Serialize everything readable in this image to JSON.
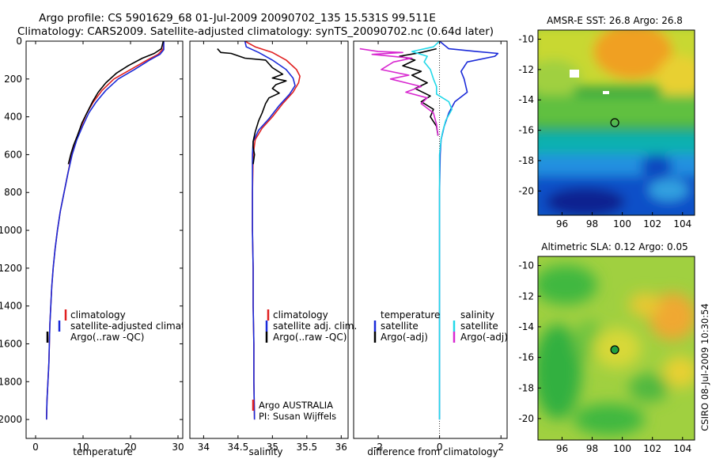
{
  "header": {
    "line1": "Argo profile: CS 5901629_68 01-Jul-2009 20090702_135 15.531S 99.511E",
    "line2": "Climatology: CARS2009. Satellite-adjusted climatology: synTS_20090702.nc (0.64d later)"
  },
  "side_label": "CSIRO 08-Jul-2009 10:30:54",
  "colors": {
    "climatology": "#e02020",
    "satellite": "#1a2ad8",
    "argo": "#000000",
    "sat_salinity": "#22d8e8",
    "argo_salinity": "#d828d0"
  },
  "chart_data": [
    {
      "type": "line",
      "id": "temperature",
      "xlabel": "temperature",
      "ylabel": "",
      "xlim": [
        -2,
        31
      ],
      "ylim": [
        2100,
        0
      ],
      "xticks": [
        0,
        10,
        20,
        30
      ],
      "yticks": [
        0,
        200,
        400,
        600,
        800,
        1000,
        1200,
        1400,
        1600,
        1800,
        2000
      ],
      "legend": [
        "climatology",
        "satellite-adjusted climatology",
        "Argo(..raw -QC)"
      ],
      "series": [
        {
          "name": "climatology",
          "color": "#e02020",
          "width": 1.6,
          "points": [
            [
              27.0,
              0
            ],
            [
              26.9,
              40
            ],
            [
              25.8,
              70
            ],
            [
              23.5,
              100
            ],
            [
              20.0,
              150
            ],
            [
              16.5,
              200
            ],
            [
              14.0,
              260
            ],
            [
              12.2,
              320
            ],
            [
              10.8,
              380
            ],
            [
              9.6,
              450
            ],
            [
              8.5,
              520
            ],
            [
              7.6,
              600
            ],
            [
              6.8,
              700
            ],
            [
              6.0,
              800
            ],
            [
              5.2,
              900
            ],
            [
              4.6,
              1000
            ],
            [
              4.1,
              1100
            ],
            [
              3.7,
              1200
            ],
            [
              3.4,
              1300
            ],
            [
              3.2,
              1400
            ],
            [
              3.0,
              1500
            ],
            [
              2.9,
              1600
            ],
            [
              2.8,
              1700
            ],
            [
              2.6,
              1800
            ],
            [
              2.4,
              1900
            ],
            [
              2.3,
              2000
            ]
          ]
        },
        {
          "name": "satellite-adjusted climatology",
          "color": "#1a2ad8",
          "width": 1.6,
          "points": [
            [
              27.0,
              0
            ],
            [
              27.0,
              45
            ],
            [
              26.2,
              70
            ],
            [
              24.0,
              100
            ],
            [
              20.8,
              150
            ],
            [
              17.4,
              200
            ],
            [
              14.8,
              260
            ],
            [
              12.8,
              320
            ],
            [
              11.2,
              380
            ],
            [
              9.9,
              450
            ],
            [
              8.7,
              520
            ],
            [
              7.7,
              600
            ],
            [
              6.8,
              700
            ],
            [
              6.0,
              800
            ],
            [
              5.2,
              900
            ],
            [
              4.6,
              1000
            ],
            [
              4.1,
              1100
            ],
            [
              3.7,
              1200
            ],
            [
              3.4,
              1300
            ],
            [
              3.2,
              1400
            ],
            [
              3.0,
              1500
            ],
            [
              2.9,
              1600
            ],
            [
              2.8,
              1700
            ],
            [
              2.6,
              1800
            ],
            [
              2.4,
              1900
            ],
            [
              2.3,
              2000
            ]
          ]
        },
        {
          "name": "Argo(..raw -QC)",
          "color": "#000000",
          "width": 1.6,
          "points": [
            [
              26.9,
              0
            ],
            [
              26.5,
              40
            ],
            [
              25.0,
              65
            ],
            [
              22.5,
              90
            ],
            [
              19.5,
              130
            ],
            [
              17.0,
              170
            ],
            [
              14.8,
              220
            ],
            [
              13.2,
              270
            ],
            [
              12.0,
              320
            ],
            [
              10.8,
              380
            ],
            [
              9.8,
              430
            ],
            [
              8.8,
              500
            ],
            [
              8.0,
              550
            ],
            [
              7.4,
              600
            ],
            [
              6.9,
              650
            ]
          ]
        }
      ]
    },
    {
      "type": "line",
      "id": "salinity",
      "xlabel": "salinity",
      "ylabel": "",
      "xlim": [
        33.8,
        36.1
      ],
      "ylim": [
        2100,
        0
      ],
      "xticks": [
        34,
        34.5,
        35,
        35.5,
        36
      ],
      "yticks": [],
      "legend": [
        "climatology",
        "satellite adj. clim.",
        "Argo(..raw -QC)"
      ],
      "series": [
        {
          "name": "climatology",
          "color": "#e02020",
          "width": 1.6,
          "points": [
            [
              34.6,
              0
            ],
            [
              34.75,
              30
            ],
            [
              35.0,
              60
            ],
            [
              35.2,
              100
            ],
            [
              35.35,
              150
            ],
            [
              35.4,
              185
            ],
            [
              35.38,
              220
            ],
            [
              35.3,
              270
            ],
            [
              35.15,
              330
            ],
            [
              35.0,
              400
            ],
            [
              34.85,
              460
            ],
            [
              34.75,
              520
            ],
            [
              34.72,
              600
            ],
            [
              34.71,
              800
            ],
            [
              34.71,
              1000
            ],
            [
              34.72,
              1200
            ],
            [
              34.72,
              1400
            ],
            [
              34.73,
              1600
            ],
            [
              34.73,
              1800
            ],
            [
              34.74,
              2000
            ]
          ]
        },
        {
          "name": "satellite adj. clim.",
          "color": "#1a2ad8",
          "width": 1.6,
          "points": [
            [
              34.6,
              0
            ],
            [
              34.62,
              30
            ],
            [
              34.8,
              60
            ],
            [
              35.0,
              100
            ],
            [
              35.2,
              150
            ],
            [
              35.3,
              195
            ],
            [
              35.33,
              235
            ],
            [
              35.25,
              280
            ],
            [
              35.1,
              340
            ],
            [
              34.95,
              410
            ],
            [
              34.8,
              470
            ],
            [
              34.72,
              530
            ],
            [
              34.71,
              600
            ],
            [
              34.71,
              800
            ],
            [
              34.71,
              1000
            ],
            [
              34.72,
              1200
            ],
            [
              34.72,
              1400
            ],
            [
              34.73,
              1600
            ],
            [
              34.73,
              1800
            ],
            [
              34.74,
              2000
            ]
          ]
        },
        {
          "name": "Argo(..raw -QC)",
          "color": "#000000",
          "width": 1.6,
          "points": [
            [
              34.2,
              40
            ],
            [
              34.25,
              60
            ],
            [
              34.4,
              65
            ],
            [
              34.6,
              90
            ],
            [
              34.9,
              100
            ],
            [
              35.0,
              140
            ],
            [
              35.15,
              175
            ],
            [
              35.0,
              195
            ],
            [
              35.2,
              210
            ],
            [
              35.05,
              230
            ],
            [
              35.0,
              250
            ],
            [
              35.1,
              275
            ],
            [
              34.95,
              300
            ],
            [
              34.9,
              330
            ],
            [
              34.85,
              380
            ],
            [
              34.8,
              420
            ],
            [
              34.75,
              480
            ],
            [
              34.72,
              530
            ],
            [
              34.72,
              560
            ],
            [
              34.74,
              600
            ],
            [
              34.72,
              650
            ]
          ]
        }
      ]
    },
    {
      "type": "line",
      "id": "difference",
      "xlabel": "difference from climatology",
      "ylabel": "",
      "xlim": [
        -2.8,
        2.2
      ],
      "ylim": [
        2100,
        0
      ],
      "xticks": [
        -2,
        0,
        2
      ],
      "yticks": [],
      "legend_temperature_title": "temperature",
      "legend_salinity_title": "salinity",
      "legend": [
        "satellite",
        "Argo(-adj)",
        "satellite",
        "Argo(-adj)"
      ],
      "series": [
        {
          "name": "satellite",
          "color": "#1a2ad8",
          "width": 1.6,
          "points": [
            [
              0.0,
              0
            ],
            [
              0.3,
              40
            ],
            [
              1.2,
              55
            ],
            [
              1.9,
              65
            ],
            [
              1.8,
              80
            ],
            [
              0.9,
              110
            ],
            [
              0.7,
              160
            ],
            [
              0.8,
              200
            ],
            [
              0.9,
              270
            ],
            [
              0.5,
              320
            ],
            [
              0.3,
              380
            ],
            [
              0.15,
              450
            ],
            [
              0.05,
              520
            ],
            [
              0.02,
              600
            ],
            [
              0.0,
              800
            ],
            [
              0.0,
              1000
            ],
            [
              0.0,
              1500
            ],
            [
              0.0,
              2000
            ]
          ]
        },
        {
          "name": "Argo(-adj)",
          "color": "#000000",
          "width": 1.6,
          "points": [
            [
              -0.1,
              40
            ],
            [
              -0.6,
              60
            ],
            [
              -1.3,
              80
            ],
            [
              -0.8,
              100
            ],
            [
              -1.2,
              130
            ],
            [
              -0.6,
              160
            ],
            [
              -0.9,
              180
            ],
            [
              -0.4,
              220
            ],
            [
              -0.8,
              250
            ],
            [
              -0.3,
              290
            ],
            [
              -0.6,
              320
            ],
            [
              -0.2,
              360
            ],
            [
              -0.3,
              400
            ],
            [
              -0.1,
              450
            ],
            [
              -0.05,
              500
            ]
          ]
        },
        {
          "name": "satellite",
          "color": "#22d8e8",
          "width": 1.6,
          "points": [
            [
              0.0,
              0
            ],
            [
              -0.2,
              30
            ],
            [
              -0.9,
              55
            ],
            [
              -0.4,
              80
            ],
            [
              -0.5,
              110
            ],
            [
              -0.3,
              150
            ],
            [
              -0.2,
              200
            ],
            [
              -0.1,
              240
            ],
            [
              -0.1,
              280
            ],
            [
              0.3,
              320
            ],
            [
              0.4,
              360
            ],
            [
              0.2,
              420
            ],
            [
              0.1,
              480
            ],
            [
              0.05,
              520
            ],
            [
              0.0,
              600
            ],
            [
              0.0,
              800
            ],
            [
              0.0,
              1000
            ],
            [
              0.0,
              1500
            ],
            [
              0.0,
              2000
            ]
          ]
        },
        {
          "name": "Argo(-adj)",
          "color": "#d828d0",
          "width": 1.6,
          "points": [
            [
              -2.6,
              40
            ],
            [
              -2.0,
              55
            ],
            [
              -1.2,
              60
            ],
            [
              -2.2,
              70
            ],
            [
              -0.9,
              90
            ],
            [
              -1.5,
              110
            ],
            [
              -1.9,
              150
            ],
            [
              -1.0,
              180
            ],
            [
              -1.6,
              200
            ],
            [
              -0.6,
              240
            ],
            [
              -1.1,
              270
            ],
            [
              -0.4,
              300
            ],
            [
              -0.6,
              330
            ],
            [
              -0.2,
              380
            ],
            [
              -0.1,
              440
            ],
            [
              -0.05,
              500
            ]
          ]
        }
      ]
    },
    {
      "type": "heatmap",
      "id": "sst-map",
      "title": "AMSR-E SST: 26.8 Argo: 26.8",
      "xlim": [
        94.4,
        104.8
      ],
      "ylim": [
        -21.6,
        -9.4
      ],
      "xticks": [
        96,
        98,
        100,
        102,
        104
      ],
      "yticks": [
        -10,
        -12,
        -14,
        -16,
        -18,
        -20
      ],
      "marker": [
        99.5,
        -15.5
      ]
    },
    {
      "type": "heatmap",
      "id": "sla-map",
      "title": "Altimetric SLA: 0.12 Argo: 0.05",
      "xlim": [
        94.4,
        104.8
      ],
      "ylim": [
        -21.4,
        -9.4
      ],
      "xticks": [
        96,
        98,
        100,
        102,
        104
      ],
      "yticks": [
        -10,
        -12,
        -14,
        -16,
        -18,
        -20
      ],
      "marker": [
        99.5,
        -15.5
      ]
    }
  ],
  "salinity_notes": [
    "Argo AUSTRALIA",
    "PI: Susan Wijffels"
  ]
}
